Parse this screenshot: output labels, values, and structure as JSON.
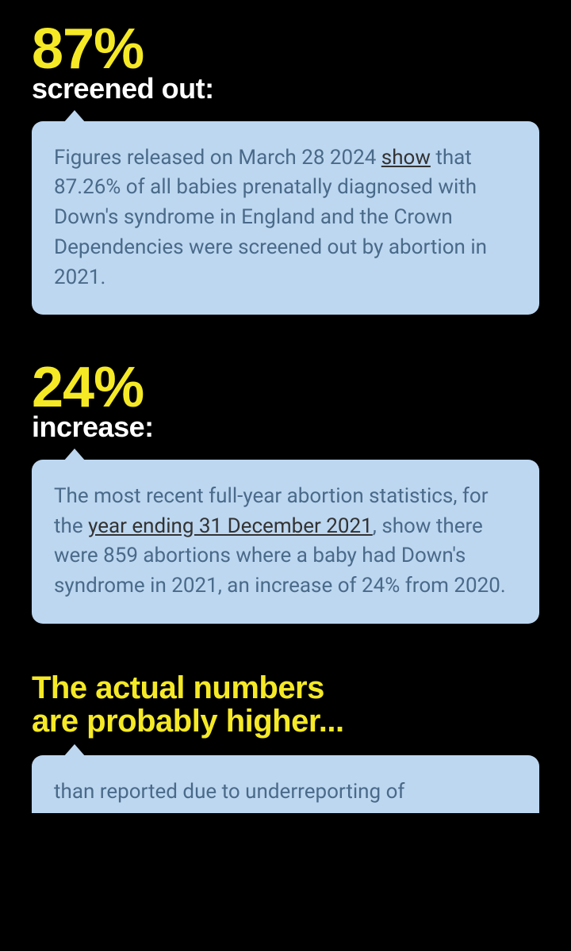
{
  "colors": {
    "background": "#000000",
    "accent_yellow": "#f5e926",
    "heading_white": "#ffffff",
    "card_bg": "#bdd7f0",
    "card_text": "#4a6a8a",
    "link_text": "#333333"
  },
  "typography": {
    "stat_number_size": 72,
    "stat_label_size": 36,
    "section_heading_size": 40,
    "body_size": 26
  },
  "sections": [
    {
      "stat": "87%",
      "label": "screened out:",
      "body_pre": "Figures released on March 28 2024 ",
      "body_link": "show",
      "body_post": " that 87.26% of all babies prenatally diagnosed with Down's syndrome in England and the Crown Dependencies were screened out by abortion in 2021."
    },
    {
      "stat": "24%",
      "label": "increase:",
      "body_pre": "The most recent full-year abortion statistics, for the ",
      "body_link": "year ending 31 December 2021",
      "body_post": ", show there were 859 abortions where a baby had Down's syndrome in 2021, an increase of 24% from 2020."
    }
  ],
  "section3": {
    "heading_line1": "The actual numbers",
    "heading_line2": "are probably higher...",
    "body_visible": "than reported due to underreporting of"
  }
}
